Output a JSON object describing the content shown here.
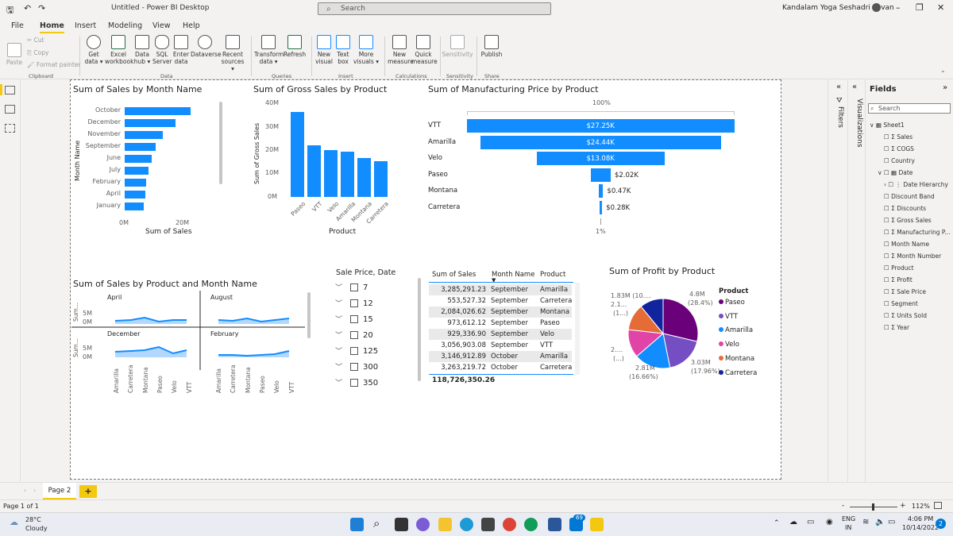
{
  "app": {
    "title": "Untitled - Power BI Desktop",
    "search_placeholder": "Search",
    "user": "Kandalam Yoga Seshadri Pavan"
  },
  "menu": [
    "File",
    "Home",
    "Insert",
    "Modeling",
    "View",
    "Help"
  ],
  "ribbon": {
    "clipboard": {
      "paste": "Paste",
      "cut": "Cut",
      "copy": "Copy",
      "format_painter": "Format painter",
      "group": "Clipboard"
    },
    "data": {
      "get_data": "Get data",
      "excel": "Excel workbook",
      "data_hub": "Data hub",
      "sql": "SQL Server",
      "enter_data": "Enter data",
      "dataverse": "Dataverse",
      "recent": "Recent sources",
      "group": "Data"
    },
    "queries": {
      "transform": "Transform data",
      "refresh": "Refresh",
      "group": "Queries"
    },
    "insert": {
      "new_visual": "New visual",
      "text_box": "Text box",
      "more_visuals": "More visuals",
      "group": "Insert"
    },
    "calculations": {
      "new_measure": "New measure",
      "quick_measure": "Quick measure",
      "group": "Calculations"
    },
    "sensitivity": {
      "label": "Sensitivity",
      "group": "Sensitivity"
    },
    "share": {
      "publish": "Publish",
      "group": "Share"
    }
  },
  "visuals": {
    "sales_by_month": {
      "title": "Sum of Sales by Month Name",
      "ylabel": "Month Name",
      "xlabel": "Sum of Sales",
      "ticks": [
        "0M",
        "20M"
      ]
    },
    "gross_sales": {
      "title": "Sum of Gross Sales by Product",
      "ylabel": "Sum of Gross Sales",
      "xlabel": "Product",
      "ticks": [
        "40M",
        "30M",
        "20M",
        "10M",
        "0M"
      ]
    },
    "funnel": {
      "title": "Sum of Manufacturing Price by Product",
      "top_pct": "100%",
      "bottom_pct": "1%"
    },
    "small_multiples": {
      "title": "Sum of Sales by Product and Month Name",
      "panels": [
        "April",
        "August",
        "December",
        "February"
      ],
      "axis_title": "Sum...",
      "ticks": [
        "5M",
        "0M"
      ],
      "categories": [
        "Amarilla",
        "Carretera",
        "Montana",
        "Paseo",
        "Velo",
        "VTT"
      ]
    },
    "slicer": {
      "title": "Sale Price, Date",
      "items": [
        "7",
        "12",
        "15",
        "20",
        "125",
        "300",
        "350"
      ]
    },
    "table": {
      "headers": [
        "Sum of Sales",
        "Month Name",
        "Product"
      ],
      "rows": [
        [
          "3,285,291.23",
          "September",
          "Amarilla"
        ],
        [
          "553,527.32",
          "September",
          "Carretera"
        ],
        [
          "2,084,026.62",
          "September",
          "Montana"
        ],
        [
          "973,612.12",
          "September",
          "Paseo"
        ],
        [
          "929,336.90",
          "September",
          "Velo"
        ],
        [
          "3,056,903.08",
          "September",
          "VTT"
        ],
        [
          "3,146,912.89",
          "October",
          "Amarilla"
        ],
        [
          "3,263,219.72",
          "October",
          "Carretera"
        ]
      ],
      "total": "118,726,350.26"
    },
    "pie": {
      "title": "Sum of Profit by Product",
      "legend_title": "Product",
      "labels": {
        "l1": "1.83M (10....",
        "l2": "2.1...",
        "l3": "(1...)",
        "l4": "2....",
        "l5": "(...)",
        "l6": "4.8M",
        "l7": "(28.4%)",
        "l8": "3.03M",
        "l9": "(17.96%)",
        "l10": "2.81M",
        "l11": "(16.66%)"
      }
    }
  },
  "chart_data": [
    {
      "type": "bar",
      "title": "Sum of Sales by Month Name",
      "orientation": "horizontal",
      "categories": [
        "October",
        "December",
        "November",
        "September",
        "June",
        "July",
        "February",
        "April",
        "January"
      ],
      "values": [
        22.3,
        17.4,
        12.9,
        10.6,
        9.3,
        8.2,
        7.3,
        6.9,
        6.6
      ],
      "units": "M",
      "xlabel": "Sum of Sales",
      "ylabel": "Month Name",
      "xlim": [
        0,
        28
      ]
    },
    {
      "type": "bar",
      "title": "Sum of Gross Sales by Product",
      "categories": [
        "Paseo",
        "VTT",
        "Velo",
        "Amarilla",
        "Montana",
        "Carretera"
      ],
      "values": [
        36,
        22,
        20,
        19,
        16.5,
        15
      ],
      "units": "M",
      "xlabel": "Product",
      "ylabel": "Sum of Gross Sales",
      "ylim": [
        0,
        40
      ]
    },
    {
      "type": "bar",
      "subtype": "funnel",
      "title": "Sum of Manufacturing Price by Product",
      "categories": [
        "VTT",
        "Amarilla",
        "Velo",
        "Paseo",
        "Montana",
        "Carretera"
      ],
      "values": [
        27.25,
        24.44,
        13.08,
        2.02,
        0.47,
        0.28
      ],
      "value_labels": [
        "$27.25K",
        "$24.44K",
        "$13.08K",
        "$2.02K",
        "$0.47K",
        "$0.28K"
      ],
      "units": "K"
    },
    {
      "type": "pie",
      "title": "Sum of Profit by Product",
      "categories": [
        "Paseo",
        "VTT",
        "Amarilla",
        "Velo",
        "Montana",
        "Carretera"
      ],
      "values": [
        28.4,
        17.96,
        16.66,
        13.0,
        12.2,
        10.8
      ],
      "colors": [
        "#6b007b",
        "#744ec2",
        "#118dff",
        "#e044a7",
        "#e66c37",
        "#12239e"
      ]
    }
  ],
  "fields": {
    "title": "Fields",
    "search_placeholder": "Search",
    "table": "Sheet1",
    "items": [
      "Sales",
      "COGS",
      "Country",
      "Date",
      "Date Hierarchy",
      "Discount Band",
      "Discounts",
      "Gross Sales",
      "Manufacturing P...",
      "Month Name",
      "Month Number",
      "Product",
      "Profit",
      "Sale Price",
      "Segment",
      "Units Sold",
      "Year"
    ]
  },
  "panes": {
    "filters": "Filters",
    "visualizations": "Visualizations"
  },
  "pages": {
    "current": "Page 2",
    "add": "+"
  },
  "status": {
    "page": "Page 1 of 1",
    "zoom": "112%",
    "zoom_minus": "-",
    "zoom_plus": "+"
  },
  "taskbar": {
    "temp": "28°C",
    "weather": "Cloudy",
    "lang": "ENG",
    "region": "IN",
    "time": "4:06 PM",
    "date": "10/14/2022",
    "badge": "69",
    "notif": "2"
  }
}
